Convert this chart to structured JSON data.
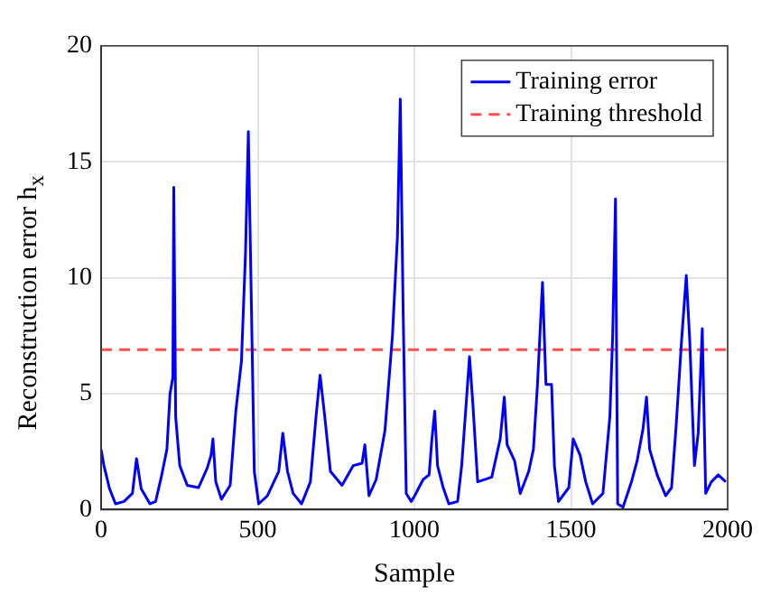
{
  "chart_data": {
    "type": "line",
    "xlabel": "Sample",
    "ylabel": "Reconstruction error  h$_{x}$",
    "xlim": [
      0,
      2000
    ],
    "xticks": [
      0,
      500,
      1000,
      1500,
      2000
    ],
    "ylim": [
      0,
      20
    ],
    "yticks": [
      0,
      5,
      10,
      15,
      20
    ],
    "grid": true,
    "legend": "top right",
    "marker": "none",
    "series": [
      {
        "name": "Training error",
        "color": "#0000ff",
        "line_style": "solid",
        "x": [
          0,
          9,
          27,
          46,
          73,
          100,
          113,
          128,
          156,
          174,
          192,
          210,
          220,
          229,
          232,
          238,
          251,
          275,
          311,
          339,
          351,
          357,
          366,
          384,
          412,
          430,
          448,
          461,
          470,
          479,
          489,
          503,
          531,
          567,
          580,
          595,
          613,
          640,
          668,
          686,
          699,
          714,
          732,
          769,
          805,
          833,
          842,
          855,
          878,
          906,
          930,
          946,
          955,
          964,
          974,
          990,
          1001,
          1028,
          1047,
          1056,
          1065,
          1074,
          1092,
          1110,
          1138,
          1151,
          1165,
          1176,
          1187,
          1202,
          1247,
          1274,
          1287,
          1296,
          1320,
          1338,
          1365,
          1380,
          1393,
          1409,
          1420,
          1438,
          1447,
          1460,
          1493,
          1507,
          1529,
          1547,
          1569,
          1602,
          1624,
          1633,
          1642,
          1649,
          1666,
          1693,
          1711,
          1730,
          1741,
          1751,
          1775,
          1802,
          1821,
          1835,
          1853,
          1868,
          1879,
          1894,
          1906,
          1919,
          1930,
          1948,
          1970,
          1994
        ],
        "values": [
          2.6,
          1.9,
          0.9,
          0.25,
          0.35,
          0.7,
          2.2,
          0.9,
          0.25,
          0.35,
          1.4,
          2.6,
          5.0,
          5.7,
          13.9,
          4.0,
          1.9,
          1.05,
          0.95,
          1.8,
          2.35,
          3.05,
          1.2,
          0.45,
          1.05,
          4.25,
          6.4,
          11.1,
          16.3,
          9.4,
          1.65,
          0.25,
          0.6,
          1.65,
          3.3,
          1.65,
          0.7,
          0.25,
          1.2,
          4.0,
          5.8,
          4.0,
          1.65,
          1.05,
          1.9,
          2.0,
          2.8,
          0.6,
          1.3,
          3.4,
          7.5,
          11.8,
          17.7,
          8.7,
          0.7,
          0.35,
          0.6,
          1.3,
          1.5,
          3.05,
          4.25,
          1.9,
          0.95,
          0.25,
          0.35,
          1.9,
          4.5,
          6.6,
          4.5,
          1.2,
          1.4,
          3.05,
          4.85,
          2.8,
          2.1,
          0.7,
          1.65,
          2.6,
          5.4,
          9.8,
          5.4,
          5.4,
          1.9,
          0.35,
          0.95,
          3.05,
          2.35,
          1.2,
          0.25,
          0.7,
          4.0,
          7.5,
          13.4,
          0.25,
          0.1,
          1.2,
          2.1,
          3.5,
          4.85,
          2.6,
          1.5,
          0.6,
          0.95,
          3.5,
          7.3,
          10.1,
          7.3,
          1.9,
          3.3,
          7.8,
          0.7,
          1.2,
          1.5,
          1.2
        ]
      }
    ],
    "ref_lines": [
      {
        "axis": "y",
        "value": 6.9,
        "label": "Training threshold",
        "color": "#ff5050",
        "line_style": "dashed"
      }
    ]
  }
}
